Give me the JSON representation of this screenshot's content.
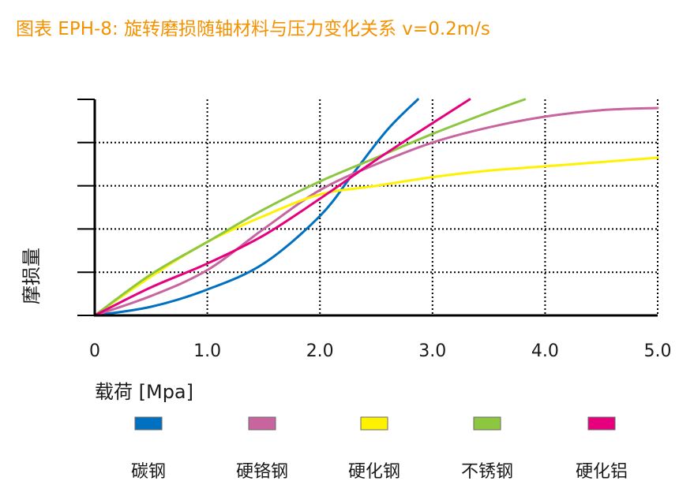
{
  "chart_data": {
    "type": "line",
    "title": "图表 EPH-8: 旋转磨损随轴材料与压力变化关系 v=0.2m/s",
    "xlabel": "载荷 [Mpa]",
    "ylabel": "摩损量",
    "xlim": [
      0,
      5
    ],
    "ylim": [
      0,
      5
    ],
    "x_ticks": [
      "0",
      "1.0",
      "2.0",
      "3.0",
      "4.0",
      "5.0"
    ],
    "grid": true,
    "legend_position": "bottom",
    "series": [
      {
        "name": "碳钢",
        "color": "#0070c0",
        "points": [
          [
            0,
            0
          ],
          [
            0.5,
            0.2
          ],
          [
            1.0,
            0.6
          ],
          [
            1.5,
            1.2
          ],
          [
            2.0,
            2.3
          ],
          [
            2.3,
            3.3
          ],
          [
            2.6,
            4.3
          ],
          [
            2.87,
            5.0
          ]
        ]
      },
      {
        "name": "硬铬钢",
        "color": "#c8659e",
        "points": [
          [
            0,
            0
          ],
          [
            0.5,
            0.45
          ],
          [
            1.0,
            1.05
          ],
          [
            1.5,
            2.0
          ],
          [
            2.0,
            2.9
          ],
          [
            2.5,
            3.5
          ],
          [
            3.0,
            4.0
          ],
          [
            3.5,
            4.35
          ],
          [
            4.0,
            4.6
          ],
          [
            4.5,
            4.75
          ],
          [
            5.0,
            4.8
          ]
        ]
      },
      {
        "name": "硬化钢",
        "color": "#fff200",
        "points": [
          [
            0,
            0
          ],
          [
            0.5,
            0.9
          ],
          [
            1.0,
            1.7
          ],
          [
            1.5,
            2.3
          ],
          [
            2.0,
            2.8
          ],
          [
            2.5,
            3.0
          ],
          [
            3.0,
            3.2
          ],
          [
            3.5,
            3.35
          ],
          [
            4.0,
            3.45
          ],
          [
            4.5,
            3.55
          ],
          [
            5.0,
            3.65
          ]
        ]
      },
      {
        "name": "不锈钢",
        "color": "#8dc63f",
        "points": [
          [
            0,
            0
          ],
          [
            0.5,
            0.95
          ],
          [
            1.0,
            1.7
          ],
          [
            1.5,
            2.45
          ],
          [
            2.0,
            3.1
          ],
          [
            2.5,
            3.65
          ],
          [
            3.0,
            4.2
          ],
          [
            3.5,
            4.7
          ],
          [
            3.82,
            5.0
          ]
        ]
      },
      {
        "name": "硬化铝",
        "color": "#e6007e",
        "points": [
          [
            0,
            0
          ],
          [
            0.5,
            0.65
          ],
          [
            1.0,
            1.2
          ],
          [
            1.5,
            1.85
          ],
          [
            2.0,
            2.7
          ],
          [
            2.5,
            3.6
          ],
          [
            3.0,
            4.45
          ],
          [
            3.33,
            5.0
          ]
        ]
      }
    ]
  }
}
